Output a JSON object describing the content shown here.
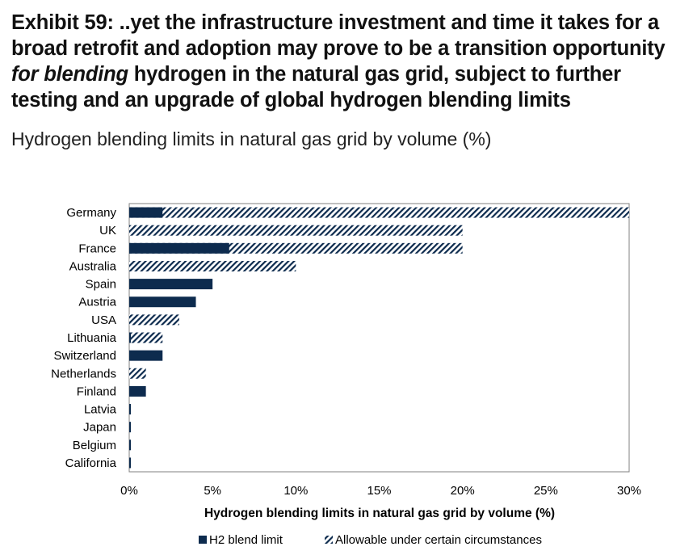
{
  "title": "Exhibit 59: ..yet the infrastructure investment and time it takes for a broad retrofit and adoption may prove to be a transition opportunity for blending hydrogen in the natural gas grid, subject to further testing and an upgrade of global hydrogen blending limits",
  "subtitle": "Hydrogen blending limits in natural gas grid by volume (%)",
  "colors": {
    "limit": "#0d2b4e",
    "allowable": "#0d2b4e",
    "axis": "#808080"
  },
  "chart_data": {
    "type": "bar",
    "orientation": "horizontal",
    "categories": [
      "Germany",
      "UK",
      "France",
      "Australia",
      "Spain",
      "Austria",
      "USA",
      "Lithuania",
      "Switzerland",
      "Netherlands",
      "Finland",
      "Latvia",
      "Japan",
      "Belgium",
      "California"
    ],
    "series": [
      {
        "name": "H2 blend limit",
        "pattern": "solid",
        "values": [
          2,
          0,
          6,
          0,
          5,
          4,
          0,
          0.1,
          2,
          0,
          1,
          0.1,
          0.1,
          0.1,
          0.1
        ]
      },
      {
        "name": "Allowable under certain circumstances",
        "pattern": "hatched",
        "values": [
          30,
          20,
          20,
          10,
          0,
          0,
          3,
          2,
          0,
          1,
          0,
          0,
          0,
          0,
          0
        ]
      }
    ],
    "xlabel": "Hydrogen blending limits in natural gas grid by volume (%)",
    "xlim": [
      0,
      30
    ],
    "xticks": [
      0,
      5,
      10,
      15,
      20,
      25,
      30
    ],
    "xtick_labels": [
      "0%",
      "5%",
      "10%",
      "15%",
      "20%",
      "25%",
      "30%"
    ],
    "grid": false,
    "legend_position": "bottom"
  }
}
